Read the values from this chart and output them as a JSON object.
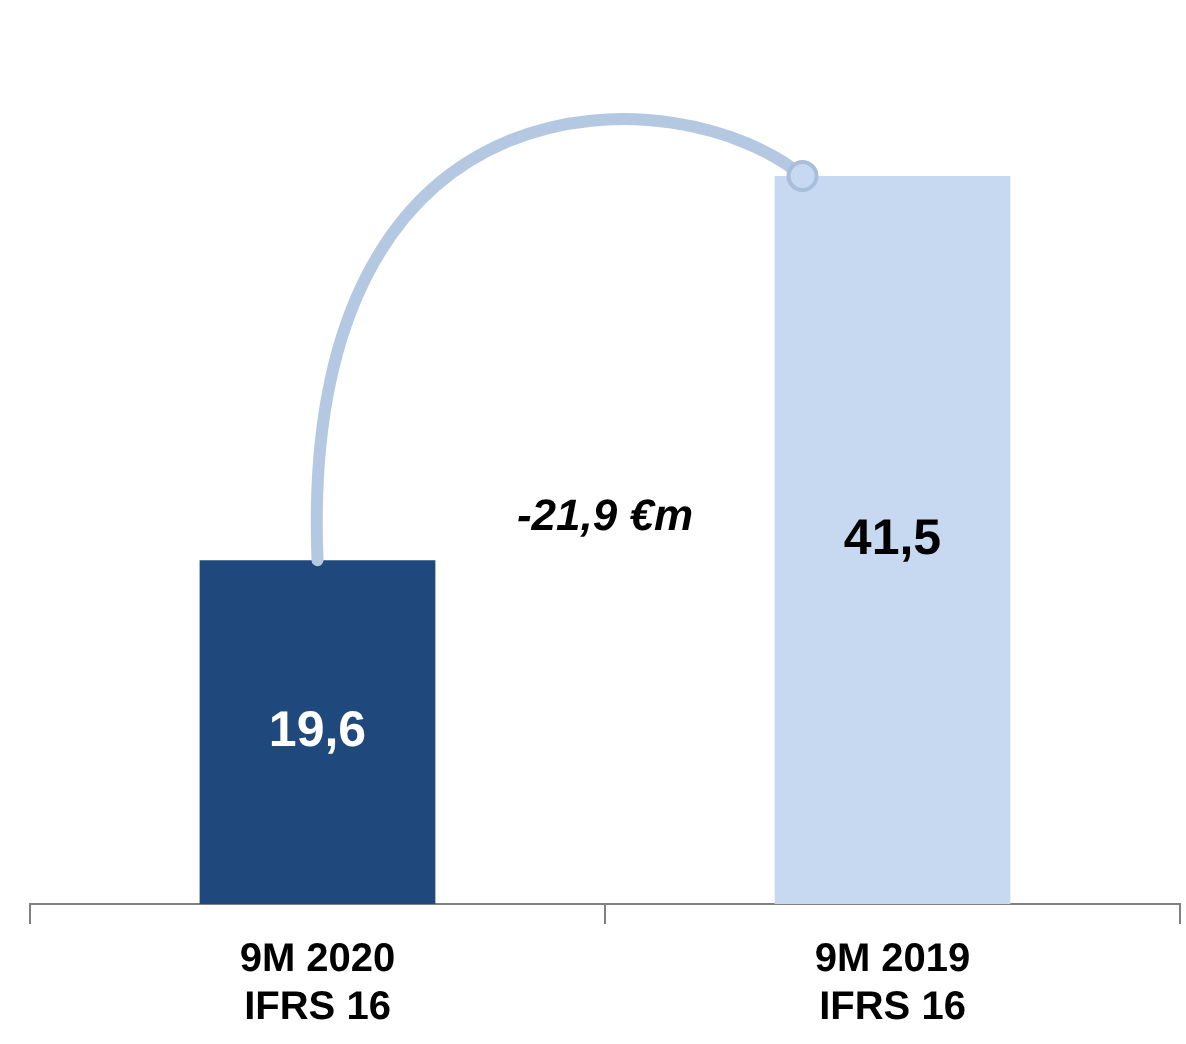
{
  "chart_data": {
    "type": "bar",
    "categories": [
      "9M 2020\nIFRS 16",
      "9M 2019\nIFRS 16"
    ],
    "values": [
      19.6,
      41.5
    ],
    "colors": [
      "#1f497d",
      "#c6d9f0"
    ],
    "value_labels": [
      "19,6",
      "41,5"
    ],
    "annotations": [
      "-21,9 €m"
    ],
    "grid": false,
    "legend": false,
    "tick_labels": "x"
  }
}
